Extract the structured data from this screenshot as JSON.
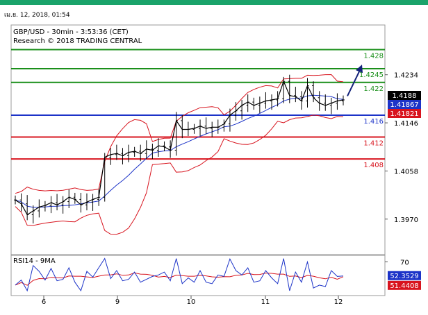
{
  "page": {
    "timestamp": "เม.ย. 12, 2018, 01:54"
  },
  "chart_data": {
    "type": "line",
    "title": "GBP/USD - 30min - 3:53:36 (CET)",
    "subtitle": "Research © 2018 TRADING CENTRAL",
    "y_axis": {
      "range": [
        1.3905,
        1.4325
      ],
      "ticks": [
        "1.4234",
        "1.4146",
        "1.4058",
        "1.3970"
      ]
    },
    "x_axis": {
      "ticks": [
        "6",
        "9",
        "10",
        "11",
        "12"
      ]
    },
    "levels": [
      {
        "label": "1.428",
        "value": 1.428,
        "color": "#1a8f1a"
      },
      {
        "label": "1.4245",
        "value": 1.4245,
        "color": "#1a8f1a"
      },
      {
        "label": "1.422",
        "value": 1.422,
        "color": "#1a8f1a"
      },
      {
        "label": "1.416",
        "value": 1.416,
        "color": "#1c33c8"
      },
      {
        "label": "1.412",
        "value": 1.412,
        "color": "#d8141e"
      },
      {
        "label": "1.408",
        "value": 1.408,
        "color": "#d8141e"
      }
    ],
    "price_badges": [
      {
        "label": "1.4188",
        "value": 1.4188,
        "bg": "#000000"
      },
      {
        "label": "1.41867",
        "value": 1.41867,
        "bg": "#1c33c8"
      },
      {
        "label": "1.41821",
        "value": 1.41821,
        "bg": "#d8141e"
      }
    ],
    "price_series": [
      1.4005,
      1.3998,
      1.3978,
      1.3985,
      1.3992,
      1.3995,
      1.4,
      1.3996,
      1.4002,
      1.401,
      1.4006,
      1.3996,
      1.4001,
      1.4006,
      1.401,
      1.4083,
      1.4088,
      1.409,
      1.4086,
      1.4092,
      1.4094,
      1.409,
      1.4098,
      1.4096,
      1.4104,
      1.4102,
      1.4096,
      1.415,
      1.4134,
      1.4134,
      1.4136,
      1.414,
      1.4136,
      1.4138,
      1.4138,
      1.4144,
      1.416,
      1.4168,
      1.4178,
      1.4184,
      1.4178,
      1.4182,
      1.4186,
      1.4188,
      1.419,
      1.4222,
      1.4196,
      1.4194,
      1.4186,
      1.4214,
      1.4192,
      1.4182,
      1.4178,
      1.4182,
      1.4186,
      1.4188
    ],
    "forecast_arrow": {
      "from": 1.4195,
      "to": 1.425
    },
    "indicator": {
      "name": "RSI14 - 9MA",
      "range": [
        28,
        78
      ],
      "tick": "70",
      "rsi_badge": "52.3529",
      "ma_badge": "51.4408",
      "rsi_value": 52.3529,
      "ma_value": 51.4408
    },
    "colors": {
      "price": "#000000",
      "ma": "#1c33c8",
      "bands": "#d8141e",
      "forecast": "#13227a",
      "rsi": "#1c33c8",
      "rsi_ma": "#d8141e"
    }
  }
}
